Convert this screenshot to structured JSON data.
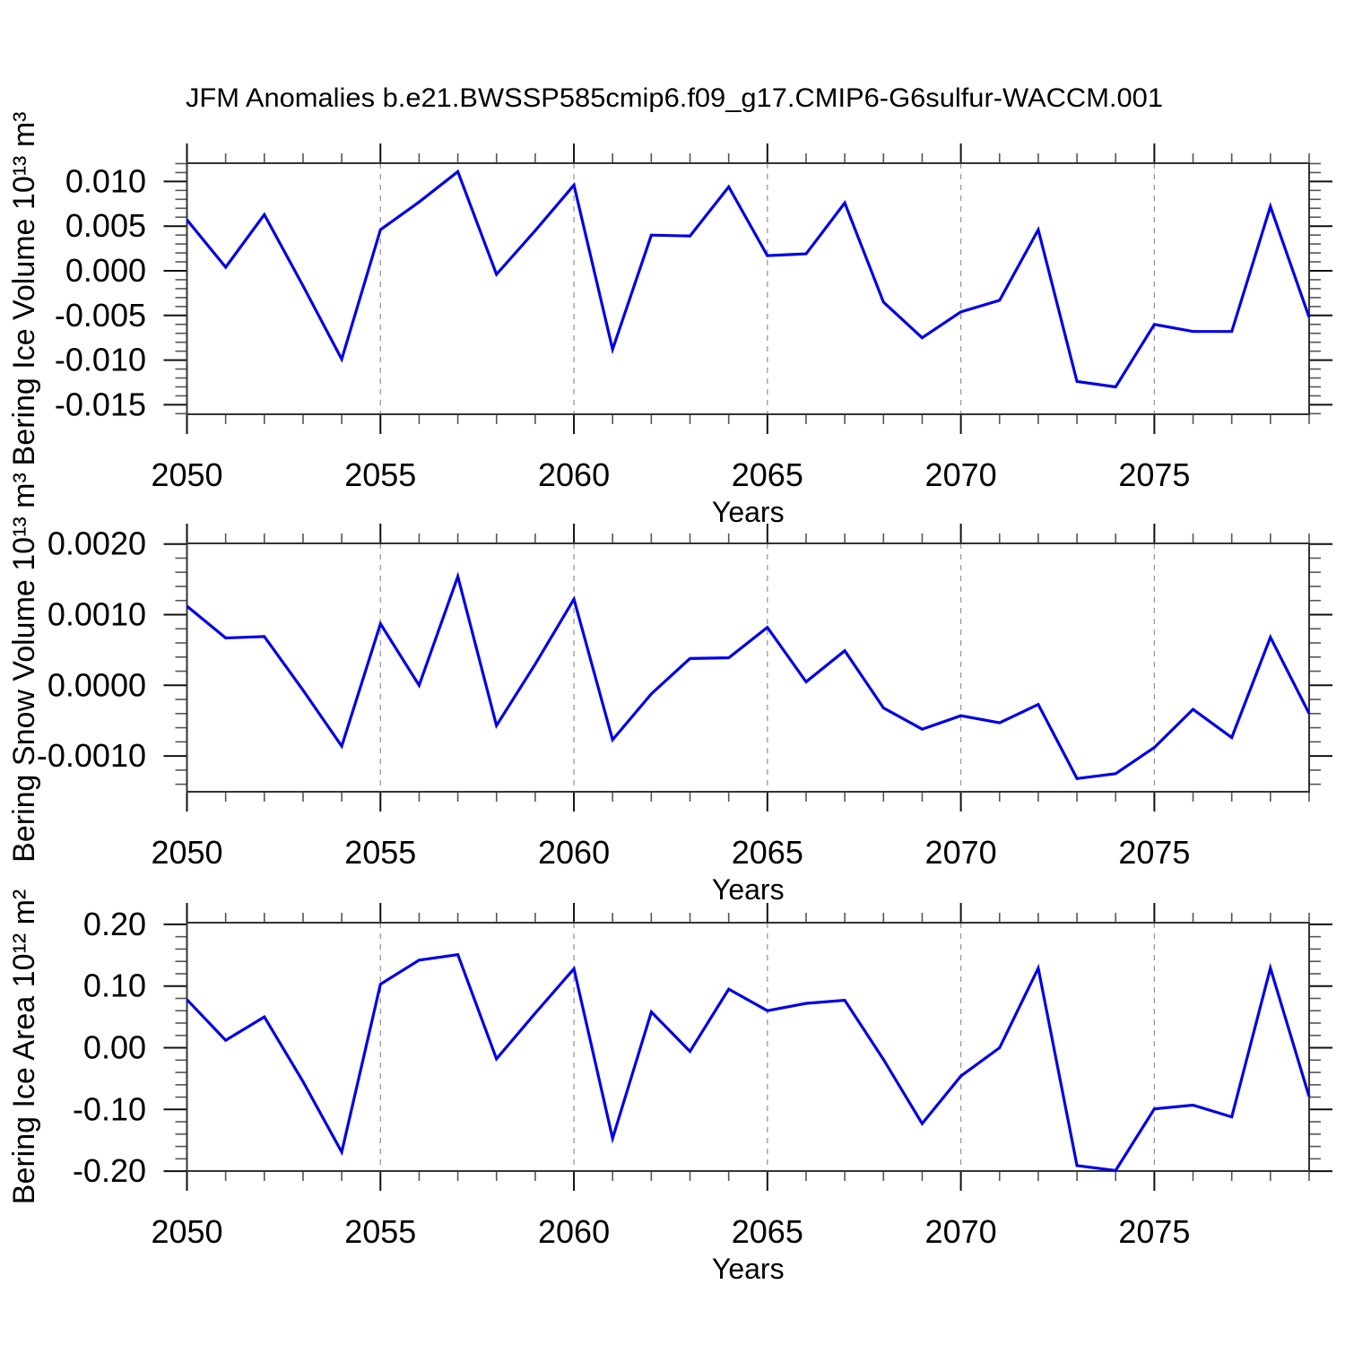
{
  "title": "JFM Anomalies b.e21.BWSSP585cmip6.f09_g17.CMIP6-G6sulfur-WACCM.001",
  "line_color": "#0000e6",
  "grid_color": "#999999",
  "axis_color": "#333333",
  "chart_data": [
    {
      "type": "line",
      "id": "bering-ice-volume",
      "ylabel": "Bering Ice Volume 10¹³ m³",
      "xlabel": "Years",
      "legend": "none",
      "grid": "vertical dashed at 5-year majors",
      "x": [
        2050,
        2051,
        2052,
        2053,
        2054,
        2055,
        2056,
        2057,
        2058,
        2059,
        2060,
        2061,
        2062,
        2063,
        2064,
        2065,
        2066,
        2067,
        2068,
        2069,
        2070,
        2071,
        2072,
        2073,
        2074,
        2075,
        2076,
        2077,
        2078,
        2079
      ],
      "y": [
        0.0057,
        0.0004,
        0.0063,
        -0.0017,
        -0.0099,
        0.0046,
        0.0077,
        0.0111,
        -0.0004,
        0.0045,
        0.0096,
        -0.0088,
        0.004,
        0.0039,
        0.0094,
        0.0017,
        0.0019,
        0.0076,
        -0.0035,
        -0.0075,
        -0.0046,
        -0.0033,
        0.0046,
        -0.0124,
        -0.013,
        -0.006,
        -0.0068,
        -0.0068,
        0.0072,
        -0.0052
      ],
      "xlim": [
        2050,
        2079
      ],
      "ylim": [
        -0.016064,
        0.012048
      ],
      "x_major_ticks": [
        2050,
        2055,
        2060,
        2065,
        2070,
        2075
      ],
      "x_tick_labels": [
        "2050",
        "2055",
        "2060",
        "2065",
        "2070",
        "2075"
      ],
      "y_major_ticks": [
        0.01,
        0.005,
        0.0,
        -0.005,
        -0.01,
        -0.015
      ],
      "y_tick_labels": [
        "0.010",
        "0.005",
        "0.000",
        "-0.005",
        "-0.010",
        "-0.015"
      ],
      "y_minor_step": 0.001
    },
    {
      "type": "line",
      "id": "bering-snow-volume",
      "ylabel": "Bering Snow Volume 10¹³ m³",
      "xlabel": "Years",
      "legend": "none",
      "grid": "vertical dashed at 5-year majors",
      "x": [
        2050,
        2051,
        2052,
        2053,
        2054,
        2055,
        2056,
        2057,
        2058,
        2059,
        2060,
        2061,
        2062,
        2063,
        2064,
        2065,
        2066,
        2067,
        2068,
        2069,
        2070,
        2071,
        2072,
        2073,
        2074,
        2075,
        2076,
        2077,
        2078,
        2079
      ],
      "y": [
        0.00112,
        0.00067,
        0.00069,
        -7e-05,
        -0.00086,
        0.00087,
        0.0,
        0.00154,
        -0.00057,
        0.0003,
        0.00122,
        -0.00077,
        -0.00012,
        0.00038,
        0.00039,
        0.00082,
        5e-05,
        0.00049,
        -0.00032,
        -0.00062,
        -0.00043,
        -0.00053,
        -0.00027,
        -0.00132,
        -0.00125,
        -0.00088,
        -0.00034,
        -0.00074,
        0.00068,
        -0.0004
      ],
      "xlim": [
        2050,
        2079
      ],
      "ylim": [
        -0.0015063,
        0.0020089
      ],
      "x_major_ticks": [
        2050,
        2055,
        2060,
        2065,
        2070,
        2075
      ],
      "x_tick_labels": [
        "2050",
        "2055",
        "2060",
        "2065",
        "2070",
        "2075"
      ],
      "y_major_ticks": [
        0.002,
        0.001,
        0.0,
        -0.001
      ],
      "y_tick_labels": [
        "0.0020",
        "0.0010",
        "0.0000",
        "-0.0010"
      ],
      "y_minor_step": 0.0002
    },
    {
      "type": "line",
      "id": "bering-ice-area",
      "ylabel": "Bering Ice Area 10¹² m²",
      "xlabel": "Years",
      "legend": "none",
      "grid": "vertical dashed at 5-year majors",
      "x": [
        2050,
        2051,
        2052,
        2053,
        2054,
        2055,
        2056,
        2057,
        2058,
        2059,
        2060,
        2061,
        2062,
        2063,
        2064,
        2065,
        2066,
        2067,
        2068,
        2069,
        2070,
        2071,
        2072,
        2073,
        2074,
        2075,
        2076,
        2077,
        2078,
        2079
      ],
      "y": [
        0.078,
        0.012,
        0.05,
        -0.055,
        -0.169,
        0.103,
        0.142,
        0.151,
        -0.018,
        0.056,
        0.128,
        -0.147,
        0.058,
        -0.006,
        0.095,
        0.06,
        0.072,
        0.077,
        -0.019,
        -0.123,
        -0.046,
        0.0,
        0.129,
        -0.191,
        -0.199,
        -0.099,
        -0.093,
        -0.112,
        0.129,
        -0.079
      ],
      "xlim": [
        2050,
        2079
      ],
      "ylim": [
        -0.199855,
        0.202762
      ],
      "x_major_ticks": [
        2050,
        2055,
        2060,
        2065,
        2070,
        2075
      ],
      "x_tick_labels": [
        "2050",
        "2055",
        "2060",
        "2065",
        "2070",
        "2075"
      ],
      "y_major_ticks": [
        0.2,
        0.1,
        0.0,
        -0.1,
        -0.2
      ],
      "y_tick_labels": [
        "0.20",
        "0.10",
        "0.00",
        "-0.10",
        "-0.20"
      ],
      "y_minor_step": 0.02
    }
  ]
}
